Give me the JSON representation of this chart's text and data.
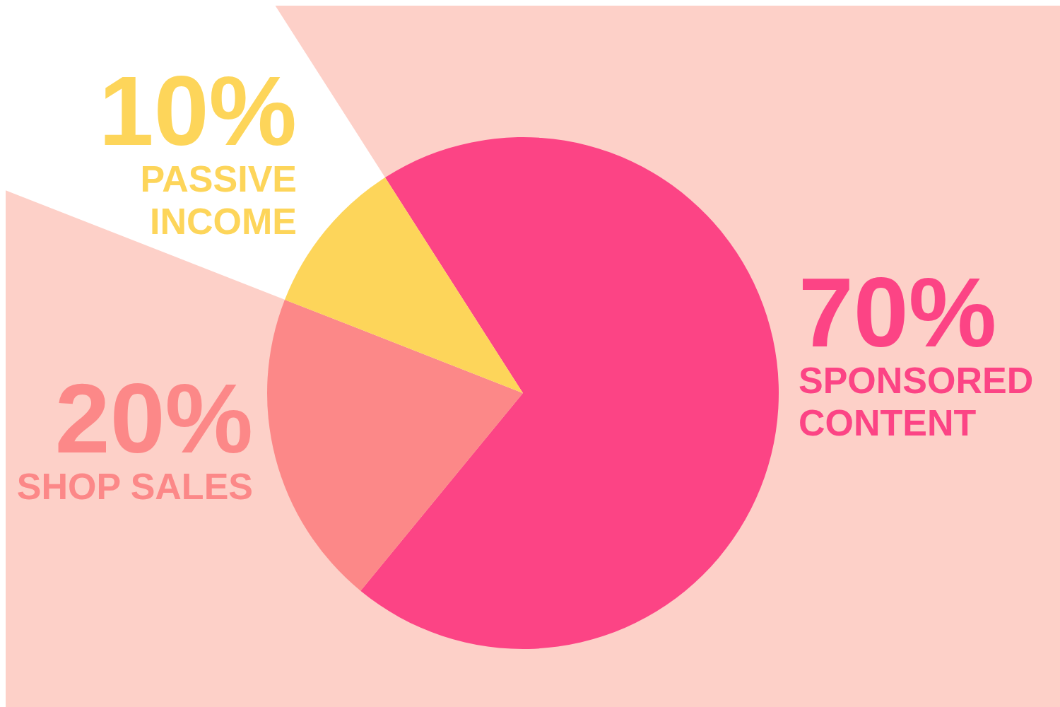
{
  "chart_data": {
    "type": "pie",
    "categories": [
      "SPONSORED CONTENT",
      "SHOP SALES",
      "PASSIVE INCOME"
    ],
    "values": [
      70,
      20,
      10
    ],
    "colors": [
      "#fc4485",
      "#fc8888",
      "#fdd55a"
    ],
    "value_labels": [
      "70%",
      "20%",
      "10%"
    ]
  }
}
